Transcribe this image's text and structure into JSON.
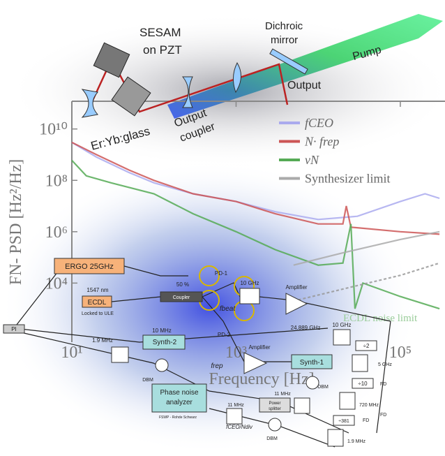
{
  "chart_data": {
    "type": "line",
    "x_label": "Frequency [Hz]",
    "y_label": "FN- PSD [Hz²/Hz]",
    "xlog": true,
    "ylog": true,
    "xlim": [
      10,
      350000
    ],
    "ylim": [
      50,
      120000000000
    ],
    "xticks": [
      {
        "value": 10,
        "label": "10¹"
      },
      {
        "value": 1000,
        "label": "10³"
      },
      {
        "value": 100000,
        "label": "10⁵"
      }
    ],
    "yticks": [
      {
        "value": 10000,
        "label": "10⁴"
      },
      {
        "value": 1000000,
        "label": "10⁶"
      },
      {
        "value": 100000000,
        "label": "10⁸"
      },
      {
        "value": 10000000000,
        "label": "10¹⁰"
      }
    ],
    "series": [
      {
        "name": "fCEO",
        "color": "#aaaaee",
        "x": [
          10,
          20,
          50,
          100,
          300,
          1000,
          3000,
          10000,
          30000,
          100000,
          200000,
          300000
        ],
        "values": [
          3000000000,
          800000000,
          200000000,
          80000000,
          30000000,
          15000000,
          6000000,
          3000000,
          4000000,
          15000000,
          30000000,
          20000000
        ]
      },
      {
        "name": "N· frep",
        "color": "#cc5555",
        "x": [
          10,
          20,
          50,
          100,
          300,
          1000,
          3000,
          10000,
          20000,
          22000,
          25000,
          100000,
          300000
        ],
        "values": [
          3000000000,
          1000000000,
          250000000,
          100000000,
          30000000,
          15000000,
          5000000,
          2000000,
          2000000,
          10000000,
          1500000,
          1000000,
          800000
        ]
      },
      {
        "name": "νN",
        "color": "#55aa55",
        "x": [
          10,
          15,
          30,
          100,
          300,
          1000,
          3000,
          10000,
          20000,
          25000,
          28000,
          35000,
          100000,
          300000
        ],
        "values": [
          600000000,
          150000000,
          80000000,
          30000000,
          5000000,
          1000000,
          200000,
          50000,
          60000,
          2000000,
          1000,
          10000,
          3000,
          1000
        ]
      },
      {
        "name": "Synthesizer limit",
        "color": "#aaaaaa",
        "x": [
          5000,
          20000,
          100000,
          300000
        ],
        "values": [
          50000,
          150000,
          500000,
          1000000
        ]
      }
    ],
    "ecdl_limit": {
      "label": "ECDL noise limit",
      "color": "#999999",
      "x": [
        5000,
        30000,
        100000,
        300000
      ],
      "values": [
        2000,
        8000,
        20000,
        60000
      ]
    }
  },
  "laser_diagram": [
    "SESAM",
    "on PZT",
    "Dichroic",
    "mirror",
    "Pump",
    "Output",
    "Er:Yb:glass",
    "Output",
    "coupler"
  ],
  "lock_diagram": [
    "ERGO 25GHz",
    "1547 nm",
    "ECDL",
    "Locked to ULE",
    "50 %",
    "Coupler",
    "PD-1",
    "fbeat",
    "10 GHz",
    "Amplifier",
    "10 GHz",
    "PI",
    "1.9 MHz",
    "Synth-2",
    "10 MHz",
    "DBM",
    "PD-2",
    "frep",
    "Amplifier",
    "24.889 GHz",
    "Synth-1",
    "DBM",
    "11 MHz",
    "Phase noise",
    "analyzer",
    "FSWP - Rohde Schwarz",
    "11 MHz",
    "Power",
    "splitter",
    "fCEO/Ndiv",
    "DBM",
    "÷2",
    "5 GHz",
    "FD",
    "÷10",
    "FD",
    "720 MHz",
    "÷381",
    "FD",
    "1.9 MHz"
  ]
}
